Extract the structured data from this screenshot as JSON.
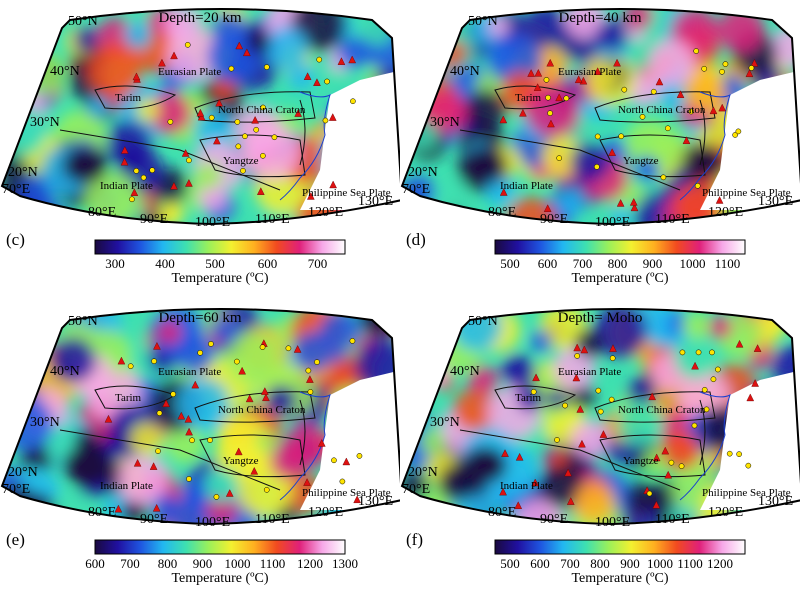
{
  "panels": [
    {
      "id": "c",
      "title": "Depth=20 km",
      "ticks": [
        "300",
        "400",
        "500",
        "600",
        "700"
      ],
      "tick_pos": [
        0.08,
        0.28,
        0.48,
        0.69,
        0.89
      ],
      "cbar_label": "Temperature (ºC)",
      "palette": [
        "#1a0a40",
        "#2010a0",
        "#1f55e0",
        "#22b8f0",
        "#3ee0b0",
        "#9bf05a",
        "#f3f030",
        "#ffb020",
        "#f24a20",
        "#e0207a",
        "#f7a8e8",
        "#ffffff"
      ]
    },
    {
      "id": "d",
      "title": "Depth=40 km",
      "ticks": [
        "500",
        "600",
        "700",
        "800",
        "900",
        "1000",
        "1100"
      ],
      "tick_pos": [
        0.06,
        0.21,
        0.35,
        0.49,
        0.63,
        0.79,
        0.93
      ],
      "cbar_label": "Temperature (ºC)",
      "palette": [
        "#1a0a40",
        "#2010a0",
        "#1f55e0",
        "#22b8f0",
        "#3ee0b0",
        "#9bf05a",
        "#f3f030",
        "#ffb020",
        "#f24a20",
        "#e0207a",
        "#f7a8e8",
        "#ffffff"
      ]
    },
    {
      "id": "e",
      "title": "Depth=60 km",
      "ticks": [
        "600",
        "700",
        "800",
        "900",
        "1000",
        "1100",
        "1200",
        "1300"
      ],
      "tick_pos": [
        0.0,
        0.14,
        0.29,
        0.43,
        0.57,
        0.71,
        0.86,
        1.0
      ],
      "cbar_label": "Temperature (ºC)",
      "palette": [
        "#1a0a40",
        "#2010a0",
        "#1f55e0",
        "#22b8f0",
        "#3ee0b0",
        "#9bf05a",
        "#f3f030",
        "#ffb020",
        "#f24a20",
        "#e0207a",
        "#f7a8e8",
        "#ffffff"
      ]
    },
    {
      "id": "f",
      "title": "Depth= Moho",
      "ticks": [
        "500",
        "600",
        "700",
        "800",
        "900",
        "1000",
        "1100",
        "1200"
      ],
      "tick_pos": [
        0.06,
        0.18,
        0.3,
        0.42,
        0.54,
        0.66,
        0.78,
        0.9
      ],
      "cbar_label": "Temperature (ºC)",
      "palette": [
        "#1a0a40",
        "#2010a0",
        "#1f55e0",
        "#22b8f0",
        "#3ee0b0",
        "#9bf05a",
        "#f3f030",
        "#ffb020",
        "#f24a20",
        "#e0207a",
        "#f7a8e8",
        "#ffffff"
      ]
    }
  ],
  "lat_labels": [
    "50°N",
    "40°N",
    "30°N",
    "20°N"
  ],
  "lon_labels": [
    "70°E",
    "80°E",
    "90°E",
    "100°E",
    "110°E",
    "120°E",
    "130°E"
  ],
  "regions": {
    "eurasian": "Eurasian Plate",
    "tarim": "Tarim",
    "ncc": "North China Craton",
    "yangtze": "Yangtze",
    "indian": "Indian Plate",
    "philippine": "Philippine Sea Plate"
  }
}
